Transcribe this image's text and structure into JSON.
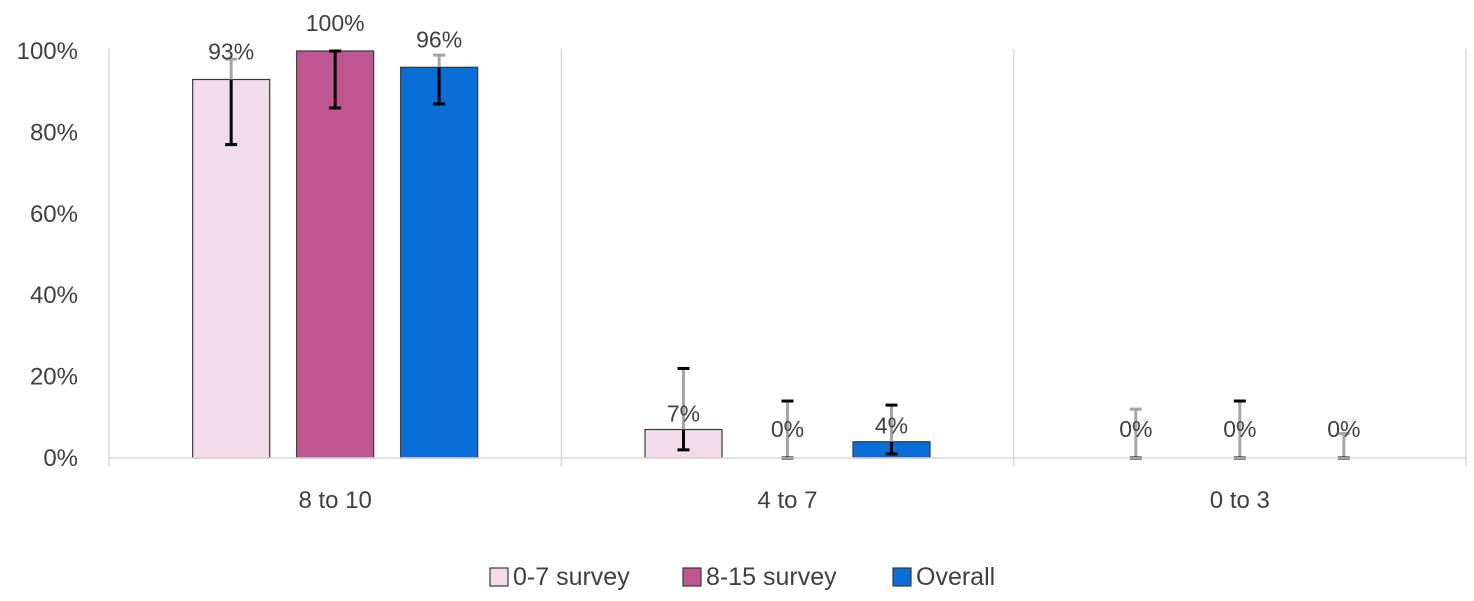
{
  "chart_data": {
    "type": "bar",
    "categories": [
      "8 to 10",
      "4 to 7",
      "0 to 3"
    ],
    "ylim": [
      0,
      100
    ],
    "yticks": [
      0,
      20,
      40,
      60,
      80,
      100
    ],
    "ytick_labels": [
      "0%",
      "20%",
      "40%",
      "60%",
      "80%",
      "100%"
    ],
    "grid": "vertical category separators",
    "legend_position": "bottom",
    "series": [
      {
        "name": "0-7 survey",
        "color": "#F2DCEA",
        "values": [
          93,
          7,
          0
        ],
        "labels": [
          "93%",
          "7%",
          "0%"
        ],
        "error_low": [
          77,
          2,
          0
        ],
        "error_high": [
          98,
          22,
          12
        ]
      },
      {
        "name": "8-15 survey",
        "color": "#C05690",
        "values": [
          100,
          0,
          0
        ],
        "labels": [
          "100%",
          "0%",
          "0%"
        ],
        "error_low": [
          86,
          0,
          0
        ],
        "error_high": [
          100,
          14,
          14
        ]
      },
      {
        "name": "Overall",
        "color": "#0A6ED8",
        "values": [
          96,
          4,
          0
        ],
        "labels": [
          "96%",
          "4%",
          "0%"
        ],
        "error_low": [
          87,
          1,
          0
        ],
        "error_high": [
          99,
          13,
          6
        ]
      }
    ]
  }
}
